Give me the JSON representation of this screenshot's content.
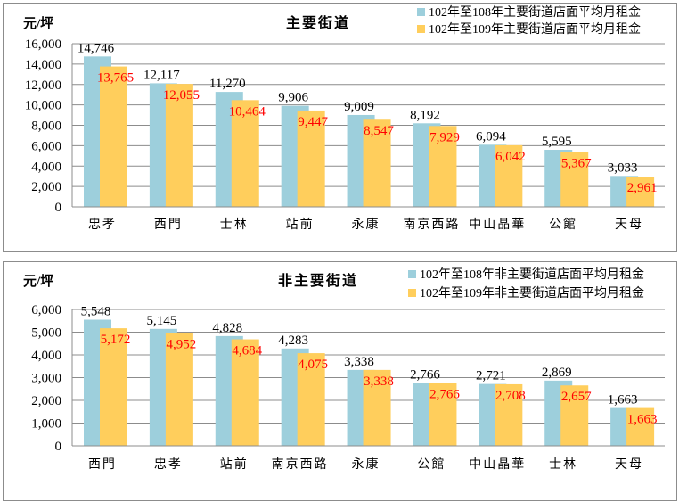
{
  "chart_data": [
    {
      "type": "bar",
      "title": "主要街道",
      "ylabel": "元/坪",
      "xlabel": "",
      "ylim": [
        0,
        16000
      ],
      "yticks": [
        0,
        2000,
        4000,
        6000,
        8000,
        10000,
        12000,
        14000,
        16000
      ],
      "ytick_labels": [
        "0",
        "2,000",
        "4,000",
        "6,000",
        "8,000",
        "10,000",
        "12,000",
        "14,000",
        "16,000"
      ],
      "grid": true,
      "legend_position": "top-right",
      "categories": [
        "忠孝",
        "西門",
        "士林",
        "站前",
        "永康",
        "南京西路",
        "中山晶華",
        "公館",
        "天母"
      ],
      "series": [
        {
          "name": "102年至108年主要街道店面平均月租金",
          "color": "#9dcfdc",
          "label_color": "#000000",
          "values": [
            14746,
            12117,
            11270,
            9906,
            9009,
            8192,
            6094,
            5595,
            3033
          ],
          "labels": [
            "14,746",
            "12,117",
            "11,270",
            "9,906",
            "9,009",
            "8,192",
            "6,094",
            "5,595",
            "3,033"
          ]
        },
        {
          "name": "102年至109年主要街道店面平均月租金",
          "color": "#ffce5c",
          "label_color": "#ff0000",
          "values": [
            13765,
            12055,
            10464,
            9447,
            8547,
            7929,
            6042,
            5367,
            2961
          ],
          "labels": [
            "13,765",
            "12,055",
            "10,464",
            "9,447",
            "8,547",
            "7,929",
            "6,042",
            "5,367",
            "2,961"
          ]
        }
      ]
    },
    {
      "type": "bar",
      "title": "非主要街道",
      "ylabel": "元/坪",
      "xlabel": "",
      "ylim": [
        0,
        6000
      ],
      "yticks": [
        0,
        1000,
        2000,
        3000,
        4000,
        5000,
        6000
      ],
      "ytick_labels": [
        "0",
        "1,000",
        "2,000",
        "3,000",
        "4,000",
        "5,000",
        "6,000"
      ],
      "grid": true,
      "legend_position": "top-right",
      "categories": [
        "西門",
        "忠孝",
        "站前",
        "南京西路",
        "永康",
        "公館",
        "中山晶華",
        "士林",
        "天母"
      ],
      "series": [
        {
          "name": "102年至108年非主要街道店面平均月租金",
          "color": "#9dcfdc",
          "label_color": "#000000",
          "values": [
            5548,
            5145,
            4828,
            4283,
            3338,
            2766,
            2721,
            2869,
            1663
          ],
          "labels": [
            "5,548",
            "5,145",
            "4,828",
            "4,283",
            "3,338",
            "2,766",
            "2,721",
            "2,869",
            "1,663"
          ]
        },
        {
          "name": "102年至109年非主要街道店面平均月租金",
          "color": "#ffce5c",
          "label_color": "#ff0000",
          "values": [
            5172,
            4952,
            4684,
            4075,
            3338,
            2766,
            2708,
            2657,
            1663
          ],
          "labels": [
            "5,172",
            "4,952",
            "4,684",
            "4,075",
            "3,338",
            "2,766",
            "2,708",
            "2,657",
            "1,663"
          ]
        }
      ]
    }
  ]
}
